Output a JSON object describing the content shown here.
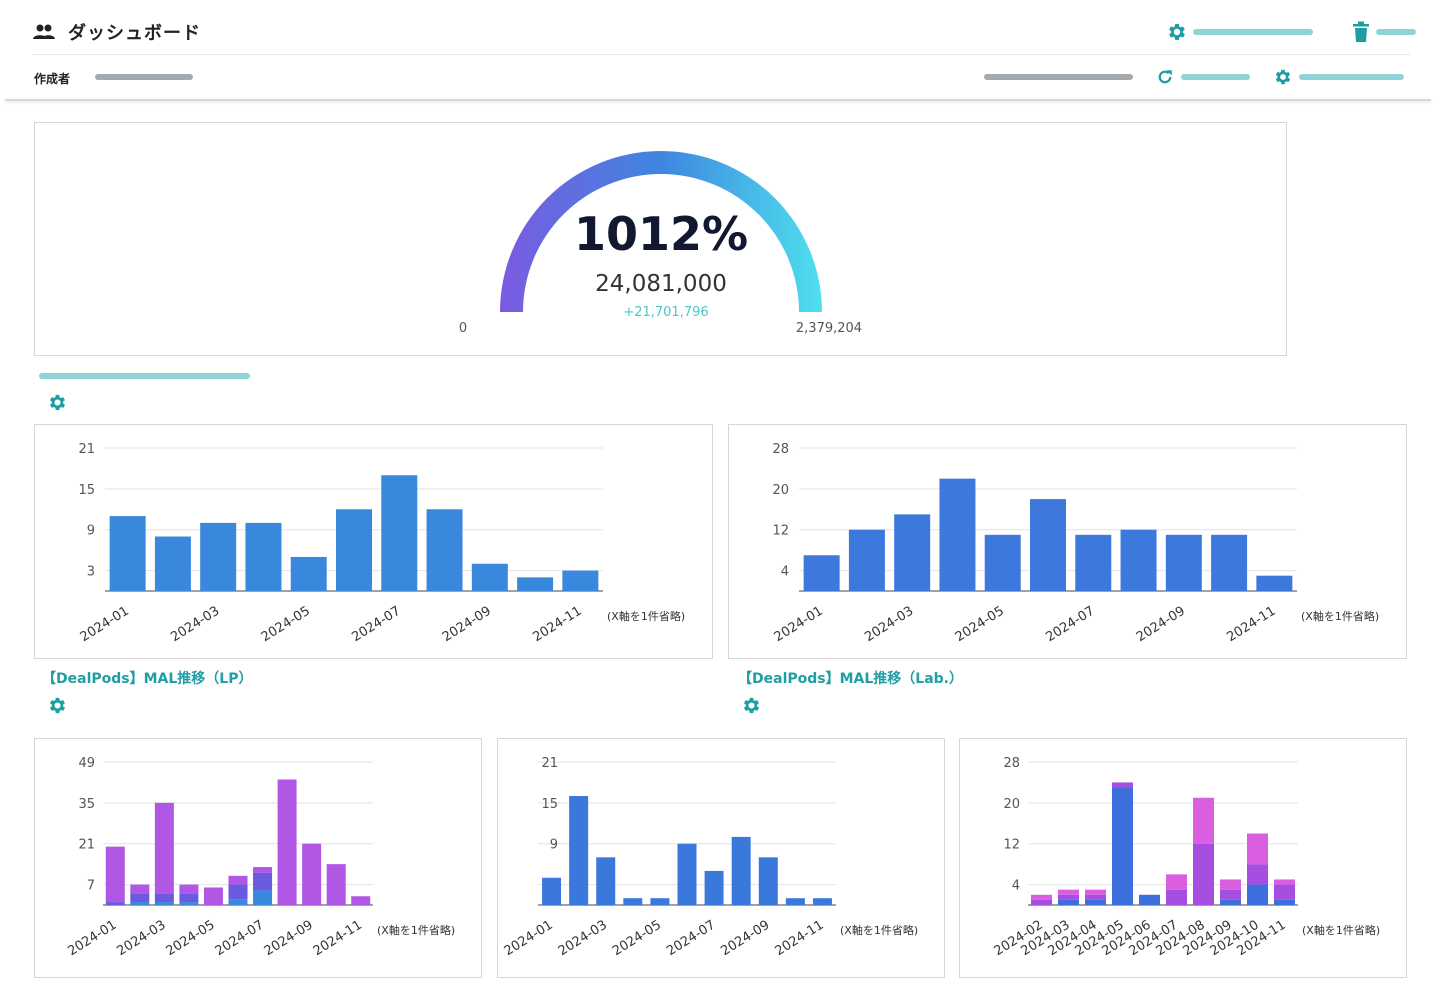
{
  "header": {
    "title": "ダッシュボード",
    "author_label": "作成者",
    "accent": "#1e9ea3",
    "icons": [
      "people-icon",
      "gear-icon",
      "trash-icon",
      "refresh-icon"
    ]
  },
  "gauge": {
    "percent_text": "1012%",
    "value_text": "24,081,000",
    "delta_text": "+21,701,796",
    "min_label": "0",
    "max_label": "2,379,204",
    "colors": [
      "#7b5be0",
      "#3e7fe0",
      "#4fd6ea"
    ]
  },
  "charts": {
    "c1": {
      "title": "",
      "note": "(X軸を1件省略)"
    },
    "c2": {
      "title": "【DealPods】MAL推移（LP）",
      "note": "(X軸を1件省略)"
    },
    "c3": {
      "title": "【DealPods】MAL推移（Lab.）",
      "note": "(X軸を1件省略)"
    },
    "c4": {
      "title": "",
      "note": "(X軸を1件省略)"
    },
    "c5": {
      "title": "",
      "note": "(X軸を1件省略)"
    }
  },
  "chart_data": [
    {
      "id": "c1",
      "type": "bar",
      "categories": [
        "2024-01",
        "2024-02",
        "2024-03",
        "2024-04",
        "2024-05",
        "2024-06",
        "2024-07",
        "2024-08",
        "2024-09",
        "2024-10",
        "2024-11"
      ],
      "tick_labels": [
        "2024-01",
        "2024-03",
        "2024-05",
        "2024-07",
        "2024-09",
        "2024-11"
      ],
      "yticks": [
        21,
        15,
        9,
        3
      ],
      "ylim": [
        0,
        21
      ],
      "series": [
        {
          "color": "#3a87de",
          "values": [
            11,
            8,
            10,
            10,
            5,
            12,
            17,
            12,
            4,
            2,
            3
          ]
        }
      ]
    },
    {
      "id": "c2",
      "type": "bar",
      "categories": [
        "2024-01",
        "2024-02",
        "2024-03",
        "2024-04",
        "2024-05",
        "2024-06",
        "2024-07",
        "2024-08",
        "2024-09",
        "2024-10",
        "2024-11"
      ],
      "tick_labels": [
        "2024-01",
        "2024-03",
        "2024-05",
        "2024-07",
        "2024-09",
        "2024-11"
      ],
      "yticks": [
        28,
        20,
        12,
        4
      ],
      "ylim": [
        0,
        28
      ],
      "series": [
        {
          "color": "#3d78dc",
          "values": [
            7,
            12,
            15,
            22,
            11,
            18,
            11,
            12,
            11,
            11,
            3
          ]
        }
      ]
    },
    {
      "id": "c3",
      "type": "bar",
      "categories": [
        "2024-01",
        "2024-02",
        "2024-03",
        "2024-04",
        "2024-05",
        "2024-06",
        "2024-07",
        "2024-08",
        "2024-09",
        "2024-10",
        "2024-11"
      ],
      "tick_labels": [
        "2024-01",
        "2024-03",
        "2024-05",
        "2024-07",
        "2024-09",
        "2024-11"
      ],
      "yticks": [
        49,
        35,
        21,
        7
      ],
      "ylim": [
        0,
        49
      ],
      "stacked": true,
      "series": [
        {
          "color": "#3a87de",
          "values": [
            0,
            1,
            1,
            1,
            0,
            2,
            5,
            0,
            0,
            0,
            0
          ]
        },
        {
          "color": "#6a5ae0",
          "values": [
            1,
            3,
            3,
            3,
            0,
            5,
            6,
            0,
            0,
            0,
            0
          ]
        },
        {
          "color": "#b057e5",
          "values": [
            19,
            3,
            31,
            3,
            6,
            3,
            2,
            43,
            21,
            14,
            3
          ]
        }
      ]
    },
    {
      "id": "c4",
      "type": "bar",
      "categories": [
        "2024-01",
        "2024-02",
        "2024-03",
        "2024-04",
        "2024-05",
        "2024-06",
        "2024-07",
        "2024-08",
        "2024-09",
        "2024-10",
        "2024-11"
      ],
      "tick_labels": [
        "2024-01",
        "2024-03",
        "2024-05",
        "2024-07",
        "2024-09",
        "2024-11"
      ],
      "yticks": [
        21,
        15,
        9,
        3
      ],
      "ylim": [
        0,
        21
      ],
      "series": [
        {
          "color": "#3a78dc",
          "values": [
            4,
            16,
            7,
            1,
            1,
            9,
            5,
            10,
            7,
            1,
            1
          ]
        }
      ]
    },
    {
      "id": "c5",
      "type": "bar",
      "categories": [
        "2024-02",
        "2024-03",
        "2024-04",
        "2024-05",
        "2024-06",
        "2024-07",
        "2024-08",
        "2024-09",
        "2024-10",
        "2024-11"
      ],
      "tick_labels": [
        "2024-02",
        "2024-03",
        "2024-04",
        "2024-05",
        "2024-06",
        "2024-07",
        "2024-08",
        "2024-09",
        "2024-10",
        "2024-11"
      ],
      "yticks": [
        28,
        20,
        12,
        4
      ],
      "ylim": [
        0,
        28
      ],
      "stacked": true,
      "series": [
        {
          "color": "#3d6fdc",
          "values": [
            0,
            1,
            1,
            23,
            2,
            0,
            0,
            1,
            4,
            1
          ]
        },
        {
          "color": "#a64ee0",
          "values": [
            1,
            1,
            1,
            1,
            0,
            3,
            12,
            2,
            4,
            3
          ]
        },
        {
          "color": "#d95ee0",
          "values": [
            1,
            1,
            1,
            0,
            0,
            3,
            9,
            2,
            6,
            1
          ]
        }
      ]
    }
  ]
}
